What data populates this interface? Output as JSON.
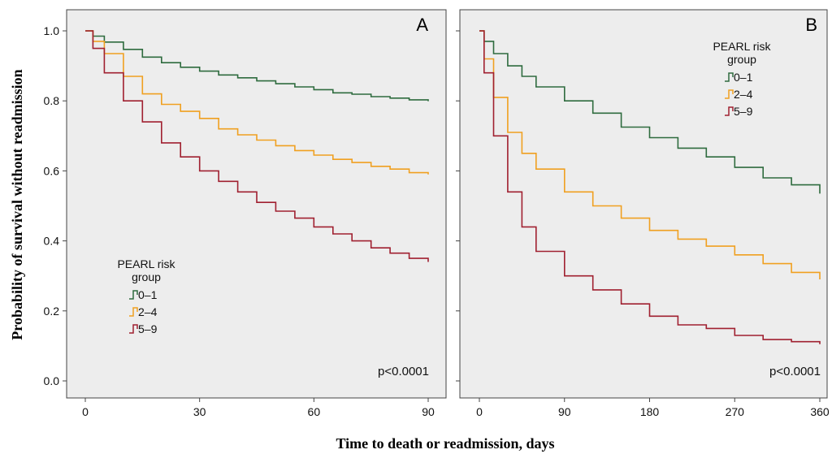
{
  "colors": {
    "background": "#ededed",
    "risk_0_1": "#2e6b3e",
    "risk_2_4": "#f0a020",
    "risk_5_9": "#a02030"
  },
  "chart_data": {
    "type": "line",
    "ylabel": "Probability of survival without readmission",
    "xlabel": "Time to death or readmission, days",
    "ylim": [
      0.0,
      1.0
    ],
    "yticks": [
      "0.0",
      "0.2",
      "0.4",
      "0.6",
      "0.8",
      "1.0"
    ],
    "grid": false,
    "panels": [
      {
        "id": "A",
        "label": "A",
        "xlim": [
          0,
          90
        ],
        "xticks": [
          "0",
          "30",
          "60",
          "90"
        ],
        "legend": {
          "title": "PEARL risk group",
          "placement": "center-left"
        },
        "pvalue": "p<0.0001",
        "series": [
          {
            "name": "0–1",
            "color_key": "risk_0_1",
            "x": [
              0,
              2,
              5,
              10,
              15,
              20,
              25,
              30,
              35,
              40,
              45,
              50,
              55,
              60,
              65,
              70,
              75,
              80,
              85,
              90
            ],
            "y": [
              1.0,
              0.985,
              0.968,
              0.947,
              0.925,
              0.909,
              0.896,
              0.885,
              0.874,
              0.866,
              0.857,
              0.849,
              0.84,
              0.832,
              0.823,
              0.819,
              0.812,
              0.808,
              0.803,
              0.799
            ]
          },
          {
            "name": "2–4",
            "color_key": "risk_2_4",
            "x": [
              0,
              2,
              5,
              10,
              15,
              20,
              25,
              30,
              35,
              40,
              45,
              50,
              55,
              60,
              65,
              70,
              75,
              80,
              85,
              90
            ],
            "y": [
              1.0,
              0.97,
              0.935,
              0.87,
              0.82,
              0.79,
              0.77,
              0.75,
              0.72,
              0.703,
              0.688,
              0.672,
              0.658,
              0.645,
              0.633,
              0.624,
              0.613,
              0.605,
              0.595,
              0.59
            ]
          },
          {
            "name": "5–9",
            "color_key": "risk_5_9",
            "x": [
              0,
              2,
              5,
              10,
              15,
              20,
              25,
              30,
              35,
              40,
              45,
              50,
              55,
              60,
              65,
              70,
              75,
              80,
              85,
              90
            ],
            "y": [
              1.0,
              0.95,
              0.88,
              0.8,
              0.74,
              0.68,
              0.64,
              0.6,
              0.57,
              0.54,
              0.51,
              0.485,
              0.465,
              0.44,
              0.42,
              0.4,
              0.38,
              0.365,
              0.35,
              0.34
            ]
          }
        ]
      },
      {
        "id": "B",
        "label": "B",
        "xlim": [
          0,
          360
        ],
        "xticks": [
          "0",
          "90",
          "180",
          "270",
          "360"
        ],
        "legend": {
          "title": "PEARL risk group",
          "placement": "top-right"
        },
        "pvalue": "p<0.0001",
        "series": [
          {
            "name": "0–1",
            "color_key": "risk_0_1",
            "x": [
              0,
              5,
              15,
              30,
              45,
              60,
              90,
              120,
              150,
              180,
              210,
              240,
              270,
              300,
              330,
              360
            ],
            "y": [
              1.0,
              0.97,
              0.935,
              0.9,
              0.87,
              0.84,
              0.8,
              0.765,
              0.725,
              0.695,
              0.665,
              0.64,
              0.61,
              0.58,
              0.56,
              0.535
            ]
          },
          {
            "name": "2–4",
            "color_key": "risk_2_4",
            "x": [
              0,
              5,
              15,
              30,
              45,
              60,
              90,
              120,
              150,
              180,
              210,
              240,
              270,
              300,
              330,
              360
            ],
            "y": [
              1.0,
              0.92,
              0.81,
              0.71,
              0.65,
              0.605,
              0.54,
              0.5,
              0.465,
              0.43,
              0.405,
              0.385,
              0.36,
              0.335,
              0.31,
              0.29
            ]
          },
          {
            "name": "5–9",
            "color_key": "risk_5_9",
            "x": [
              0,
              5,
              15,
              30,
              45,
              60,
              90,
              120,
              150,
              180,
              210,
              240,
              270,
              300,
              330,
              360
            ],
            "y": [
              1.0,
              0.88,
              0.7,
              0.54,
              0.44,
              0.37,
              0.3,
              0.26,
              0.22,
              0.185,
              0.16,
              0.15,
              0.13,
              0.118,
              0.112,
              0.105
            ]
          }
        ]
      }
    ]
  }
}
